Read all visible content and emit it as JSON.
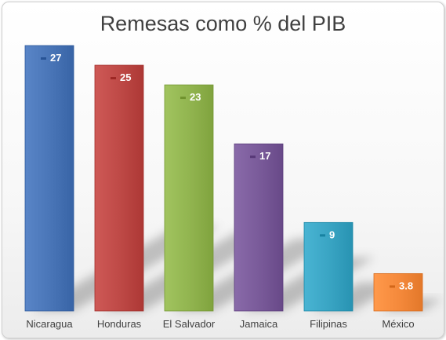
{
  "chart_data": {
    "type": "bar",
    "title": "Remesas como % del PIB",
    "categories": [
      "Nicaragua",
      "Honduras",
      "El Salvador",
      "Jamaica",
      "Filipinas",
      "México"
    ],
    "values": [
      27,
      25,
      23,
      17,
      9,
      3.8
    ],
    "value_labels": [
      "27",
      "25",
      "23",
      "17",
      "9",
      "3.8"
    ],
    "colors": [
      "#4a76b8",
      "#bf4a47",
      "#92b550",
      "#7a5b9a",
      "#3aa5c4",
      "#f58a3c"
    ],
    "ylim": [
      0,
      30
    ],
    "grid": false,
    "legend": "none"
  }
}
